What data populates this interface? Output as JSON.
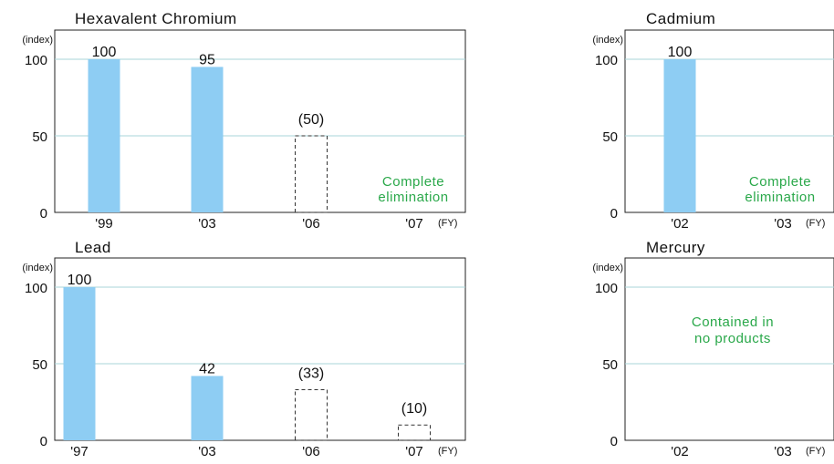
{
  "chart_data": [
    {
      "type": "bar",
      "title": "Hexavalent Chromium",
      "ylabel": "(index)",
      "xunit": "(FY)",
      "ylim": [
        0,
        100
      ],
      "yticks": [
        0,
        50,
        100
      ],
      "categories": [
        "'99",
        "'03",
        "'06",
        "'07"
      ],
      "values": [
        100,
        95,
        50,
        null
      ],
      "value_labels": [
        "100",
        "95",
        "(50)",
        ""
      ],
      "planned": [
        false,
        false,
        true,
        false
      ],
      "note": [
        "Complete",
        "elimination"
      ]
    },
    {
      "type": "bar",
      "title": "Cadmium",
      "ylabel": "(index)",
      "xunit": "(FY)",
      "ylim": [
        0,
        100
      ],
      "yticks": [
        0,
        50,
        100
      ],
      "categories": [
        "'02",
        "'03"
      ],
      "values": [
        100,
        null
      ],
      "value_labels": [
        "100",
        ""
      ],
      "planned": [
        false,
        false
      ],
      "note": [
        "Complete",
        "elimination"
      ]
    },
    {
      "type": "bar",
      "title": "Lead",
      "ylabel": "(index)",
      "xunit": "(FY)",
      "ylim": [
        0,
        100
      ],
      "yticks": [
        0,
        50,
        100
      ],
      "categories": [
        "'97",
        "'03",
        "'06",
        "'07"
      ],
      "values": [
        100,
        42,
        33,
        10
      ],
      "value_labels": [
        "100",
        "42",
        "(33)",
        "(10)"
      ],
      "planned": [
        false,
        false,
        true,
        true
      ],
      "note": []
    },
    {
      "type": "bar",
      "title": "Mercury",
      "ylabel": "(index)",
      "xunit": "(FY)",
      "ylim": [
        0,
        100
      ],
      "yticks": [
        0,
        50,
        100
      ],
      "categories": [
        "'02",
        "'03"
      ],
      "values": [
        null,
        null
      ],
      "value_labels": [
        "",
        ""
      ],
      "planned": [
        false,
        false
      ],
      "note": [
        "Contained in",
        "no products"
      ]
    }
  ],
  "colors": {
    "bar": "#8ecdf3",
    "grid": "#a8d4d8",
    "note": "#2aa84a",
    "frame": "#222222"
  }
}
